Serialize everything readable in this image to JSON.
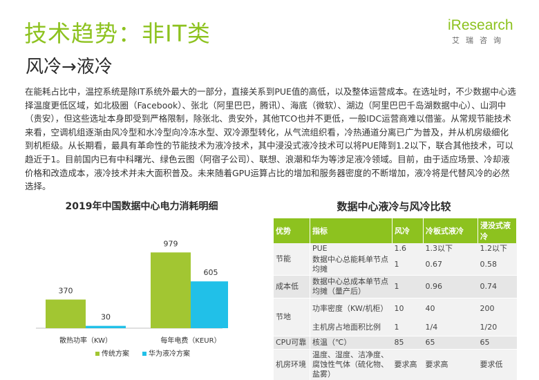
{
  "header": {
    "title": "技术趋势：非IT类",
    "subtitle": "风冷→液冷",
    "logo_text": "iResearch",
    "logo_cn": "艾瑞咨询"
  },
  "body": {
    "paragraph": "在能耗占比中，温控系统是除IT系统外最大的一部分，直接关系到PUE值的高低，以及整体运营成本。在选址时，不少数据中心选择温度更低区域，如北极圈（Facebook）、张北（阿里巴巴，腾讯）、海底（微软）、湖边（阿里巴巴千岛湖数据中心）、山洞中（贵安），但这些选址本身即受到严格限制，除张北、贵安外，其他TCO也并不更低，一般IDC运营商难以借鉴。从常规节能技术来看，空调机组逐渐由风冷型和水冷型向冷冻水型、双冷源型转化，从气流组织看，冷热通道分离已广为普及，并从机房级细化到机柜级。从长期看，最具有革命性的节能技术为液冷技术，其中浸没式液冷技术可以将PUE降到1.2以下，联合其他技术，可以趋近于1。目前国内已有中科曙光、绿色云图（阿宿子公司）、联想、浪潮和华为等涉足液冷领域。目前，由于适应场景、冷却液价格和改造成本，液冷技术并未大面积普及。未来随着GPU运算占比的增加和服务器密度的不断增加，液冷将是代替风冷的必然选择。"
  },
  "chart_data": {
    "type": "bar",
    "title": "2019年中国数据中心电力消耗明细",
    "categories": [
      "散热功率（KW）",
      "每年电费（KEUR）"
    ],
    "series": [
      {
        "name": "传统方案",
        "values": [
          370,
          979
        ],
        "color": "#a2c632"
      },
      {
        "name": "华为液冷方案",
        "values": [
          30,
          605
        ],
        "color": "#21c0e8"
      }
    ],
    "ylim": [
      0,
      1000
    ],
    "grid": false,
    "legend": "bottom"
  },
  "table": {
    "title": "数据中心液冷与风冷比较",
    "headers": [
      "优势",
      "指标",
      "风冷",
      "冷板式液冷",
      "浸没式液冷"
    ],
    "rows": [
      {
        "cat": "节能",
        "indicator": "PUE",
        "air": "1.6",
        "plate": "1.3以下",
        "immersion": "1.2以下"
      },
      {
        "cat": "",
        "indicator": "数据中心总能耗单节点均摊",
        "air": "1",
        "plate": "0.67",
        "immersion": "0.58"
      },
      {
        "cat": "成本低",
        "indicator": "数据中心总成本单节点均摊（量产后）",
        "air": "1",
        "plate": "0.96",
        "immersion": "0.74"
      },
      {
        "cat": "节地",
        "indicator": "功率密度（KW/机柜）",
        "air": "10",
        "plate": "40",
        "immersion": "200"
      },
      {
        "cat": "",
        "indicator": "主机房占地面积比例",
        "air": "1",
        "plate": "1/4",
        "immersion": "1/20"
      },
      {
        "cat": "CPU可靠",
        "indicator": "核温（℃）",
        "air": "85",
        "plate": "65",
        "immersion": "65"
      },
      {
        "cat": "机房环境",
        "indicator": "温度、湿度、洁净度、腐蚀性气体（硫化物、盐雾）",
        "air": "要求高",
        "plate": "要求高",
        "immersion": "要求低"
      }
    ]
  },
  "colors": {
    "brand": "#8dc21f",
    "series1": "#a2c632",
    "series2": "#21c0e8"
  }
}
